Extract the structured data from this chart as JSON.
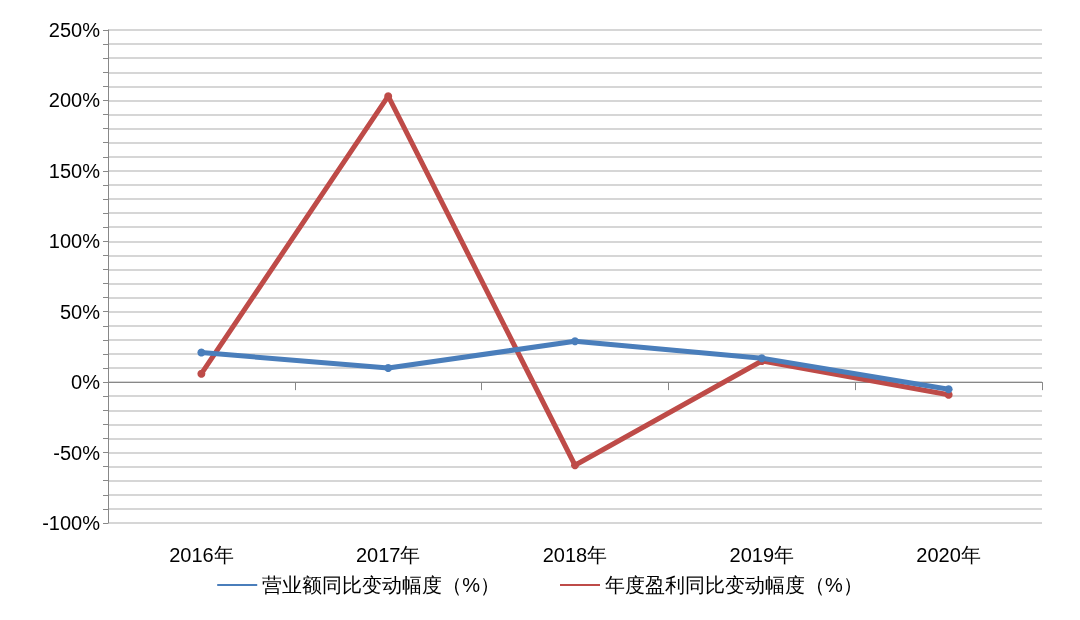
{
  "chart_data": {
    "type": "line",
    "categories": [
      "2016年",
      "2017年",
      "2018年",
      "2019年",
      "2020年"
    ],
    "series": [
      {
        "name": "营业额同比变动幅度（%）",
        "color": "#4a7ebb",
        "values": [
          21,
          10,
          29,
          17,
          -5
        ]
      },
      {
        "name": "年度盈利同比变动幅度（%）",
        "color": "#be4b48",
        "values": [
          6,
          203,
          -59,
          15,
          -9
        ]
      }
    ],
    "ylim": [
      -100,
      250
    ],
    "yticks": [
      {
        "value": -100,
        "label": "-100%"
      },
      {
        "value": -90,
        "label": null
      },
      {
        "value": -80,
        "label": null
      },
      {
        "value": -70,
        "label": null
      },
      {
        "value": -60,
        "label": null
      },
      {
        "value": -50,
        "label": "-50%"
      },
      {
        "value": -40,
        "label": null
      },
      {
        "value": -30,
        "label": null
      },
      {
        "value": -20,
        "label": null
      },
      {
        "value": -10,
        "label": null
      },
      {
        "value": 0,
        "label": "0%"
      },
      {
        "value": 10,
        "label": null
      },
      {
        "value": 20,
        "label": null
      },
      {
        "value": 30,
        "label": null
      },
      {
        "value": 40,
        "label": null
      },
      {
        "value": 50,
        "label": "50%"
      },
      {
        "value": 60,
        "label": null
      },
      {
        "value": 70,
        "label": null
      },
      {
        "value": 80,
        "label": null
      },
      {
        "value": 90,
        "label": null
      },
      {
        "value": 100,
        "label": "100%"
      },
      {
        "value": 110,
        "label": null
      },
      {
        "value": 120,
        "label": null
      },
      {
        "value": 130,
        "label": null
      },
      {
        "value": 140,
        "label": null
      },
      {
        "value": 150,
        "label": "150%"
      },
      {
        "value": 160,
        "label": null
      },
      {
        "value": 170,
        "label": null
      },
      {
        "value": 180,
        "label": null
      },
      {
        "value": 190,
        "label": null
      },
      {
        "value": 200,
        "label": "200%"
      },
      {
        "value": 210,
        "label": null
      },
      {
        "value": 220,
        "label": null
      },
      {
        "value": 230,
        "label": null
      },
      {
        "value": 240,
        "label": null
      },
      {
        "value": 250,
        "label": "250%"
      }
    ],
    "grid": "y",
    "legend": "bottom",
    "marker": "circle",
    "line_style": "solid"
  }
}
